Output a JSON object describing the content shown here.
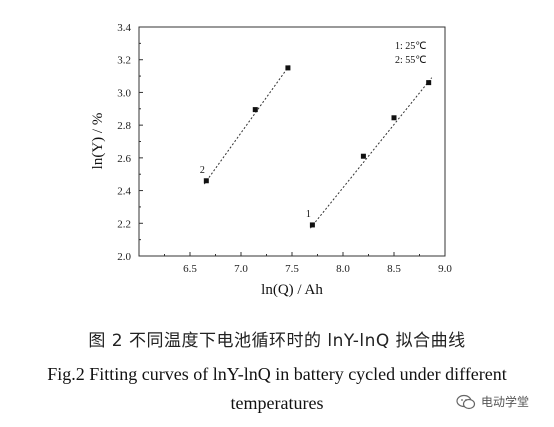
{
  "chart_data": {
    "type": "scatter",
    "xlabel": "ln(Q) / Ah",
    "ylabel": "ln(Y) / %",
    "xlim": [
      6.0,
      9.0
    ],
    "ylim": [
      2.0,
      3.4
    ],
    "xticks": [
      "6.5",
      "7.0",
      "7.5",
      "8.0",
      "8.5",
      "9.0"
    ],
    "yticks": [
      "2.0",
      "2.2",
      "2.4",
      "2.6",
      "2.8",
      "3.0",
      "3.2",
      "3.4"
    ],
    "grid": false,
    "legend_position": "top-right",
    "legend": [
      "1: 25℃",
      "2: 55℃"
    ],
    "series": [
      {
        "name": "1",
        "points": [
          [
            7.7,
            2.19
          ],
          [
            8.2,
            2.61
          ],
          [
            8.5,
            2.845
          ],
          [
            8.84,
            3.06
          ]
        ],
        "fit": [
          [
            7.68,
            2.17
          ],
          [
            8.87,
            3.09
          ]
        ]
      },
      {
        "name": "2",
        "points": [
          [
            6.66,
            2.46
          ],
          [
            7.14,
            2.895
          ],
          [
            7.46,
            3.15
          ]
        ],
        "fit": [
          [
            6.64,
            2.44
          ],
          [
            7.48,
            3.17
          ]
        ]
      }
    ]
  },
  "caption": {
    "chinese": "图 2  不同温度下电池循环时的 lnY-lnQ 拟合曲线",
    "english_line1": "Fig.2 Fitting curves of lnY-lnQ in battery cycled under different",
    "english_line2": "temperatures"
  },
  "watermark": {
    "text": "电动学堂",
    "icon": "wechat-icon"
  }
}
